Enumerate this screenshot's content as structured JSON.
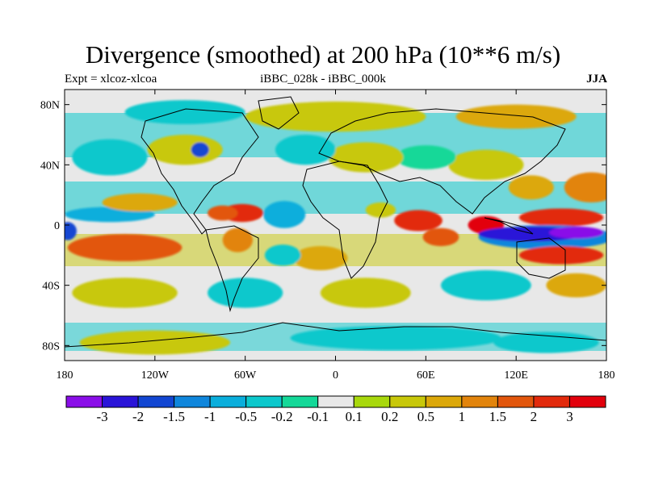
{
  "title": "Divergence (smoothed) at 200 hPa (10**6 m/s)",
  "subtitle_left": "Expt = xlcoz-xlcoa",
  "subtitle_center": "iBBC_028k - iBBC_000k",
  "subtitle_right": "JJA",
  "x_ticks": [
    {
      "value": -180,
      "label": "180"
    },
    {
      "value": -120,
      "label": "120W"
    },
    {
      "value": -60,
      "label": "60W"
    },
    {
      "value": 0,
      "label": "0"
    },
    {
      "value": 60,
      "label": "60E"
    },
    {
      "value": 120,
      "label": "120E"
    },
    {
      "value": 180,
      "label": "180"
    }
  ],
  "y_ticks": [
    {
      "value": 80,
      "label": "80N"
    },
    {
      "value": 40,
      "label": "40N"
    },
    {
      "value": 0,
      "label": "0"
    },
    {
      "value": -40,
      "label": "40S"
    },
    {
      "value": -80,
      "label": "80S"
    }
  ],
  "lon_range": [
    -180,
    180
  ],
  "lat_range": [
    -90,
    90
  ],
  "colorbar": {
    "labels": [
      "-3",
      "-2",
      "-1.5",
      "-1",
      "-0.5",
      "-0.2",
      "-0.1",
      "0.1",
      "0.2",
      "0.5",
      "1",
      "1.5",
      "2",
      "3"
    ],
    "colors": [
      "#8a0ee8",
      "#2a14d8",
      "#1246d2",
      "#0f86dc",
      "#0aaedc",
      "#0cc8cc",
      "#14d898",
      "#e8e8e8",
      "#a8d80c",
      "#c8c80a",
      "#dca80a",
      "#e2840c",
      "#e2560c",
      "#e22a0c",
      "#e2000c"
    ]
  },
  "field_blobs": [
    {
      "lon": -62,
      "lat": 8,
      "rx": 14,
      "ry": 6,
      "level": 13
    },
    {
      "lon": -75,
      "lat": 8,
      "rx": 10,
      "ry": 5,
      "level": 12
    },
    {
      "lon": -34,
      "lat": 7,
      "rx": 7,
      "ry": 6,
      "level": 1
    },
    {
      "lon": -34,
      "lat": 7,
      "rx": 14,
      "ry": 9,
      "level": 4
    },
    {
      "lon": -150,
      "lat": 7,
      "rx": 30,
      "ry": 5,
      "level": 4
    },
    {
      "lon": -140,
      "lat": -15,
      "rx": 38,
      "ry": 9,
      "level": 12
    },
    {
      "lon": -130,
      "lat": 15,
      "rx": 25,
      "ry": 6,
      "level": 10
    },
    {
      "lon": -178,
      "lat": -4,
      "rx": 6,
      "ry": 6,
      "level": 2
    },
    {
      "lon": -10,
      "lat": -22,
      "rx": 18,
      "ry": 8,
      "level": 10
    },
    {
      "lon": -35,
      "lat": -20,
      "rx": 12,
      "ry": 7,
      "level": 5
    },
    {
      "lon": -65,
      "lat": -10,
      "rx": 10,
      "ry": 8,
      "level": 11
    },
    {
      "lon": 55,
      "lat": 3,
      "rx": 16,
      "ry": 7,
      "level": 13
    },
    {
      "lon": 70,
      "lat": -8,
      "rx": 12,
      "ry": 6,
      "level": 12
    },
    {
      "lon": 30,
      "lat": 10,
      "rx": 10,
      "ry": 5,
      "level": 9
    },
    {
      "lon": 100,
      "lat": 0,
      "rx": 12,
      "ry": 6,
      "level": 14
    },
    {
      "lon": 150,
      "lat": 5,
      "rx": 28,
      "ry": 6,
      "level": 13
    },
    {
      "lon": 140,
      "lat": -8,
      "rx": 45,
      "ry": 8,
      "level": 3
    },
    {
      "lon": 130,
      "lat": -6,
      "rx": 35,
      "ry": 5,
      "level": 1
    },
    {
      "lon": 160,
      "lat": -5,
      "rx": 18,
      "ry": 4,
      "level": 0
    },
    {
      "lon": 150,
      "lat": -20,
      "rx": 28,
      "ry": 6,
      "level": 13
    },
    {
      "lon": 170,
      "lat": 25,
      "rx": 18,
      "ry": 10,
      "level": 11
    },
    {
      "lon": 130,
      "lat": 25,
      "rx": 15,
      "ry": 8,
      "level": 10
    },
    {
      "lon": 100,
      "lat": 40,
      "rx": 25,
      "ry": 10,
      "level": 9
    },
    {
      "lon": 60,
      "lat": 45,
      "rx": 20,
      "ry": 8,
      "level": 6
    },
    {
      "lon": 20,
      "lat": 45,
      "rx": 25,
      "ry": 10,
      "level": 9
    },
    {
      "lon": -20,
      "lat": 50,
      "rx": 20,
      "ry": 10,
      "level": 5
    },
    {
      "lon": -100,
      "lat": 50,
      "rx": 25,
      "ry": 10,
      "level": 9
    },
    {
      "lon": -90,
      "lat": 50,
      "rx": 6,
      "ry": 5,
      "level": 2
    },
    {
      "lon": -150,
      "lat": 45,
      "rx": 25,
      "ry": 12,
      "level": 5
    },
    {
      "lon": 0,
      "lat": 72,
      "rx": 60,
      "ry": 10,
      "level": 9
    },
    {
      "lon": -100,
      "lat": 75,
      "rx": 40,
      "ry": 8,
      "level": 5
    },
    {
      "lon": 120,
      "lat": 72,
      "rx": 40,
      "ry": 8,
      "level": 10
    },
    {
      "lon": -140,
      "lat": -45,
      "rx": 35,
      "ry": 10,
      "level": 9
    },
    {
      "lon": -60,
      "lat": -45,
      "rx": 25,
      "ry": 10,
      "level": 5
    },
    {
      "lon": 20,
      "lat": -45,
      "rx": 30,
      "ry": 10,
      "level": 9
    },
    {
      "lon": 100,
      "lat": -40,
      "rx": 30,
      "ry": 10,
      "level": 5
    },
    {
      "lon": 160,
      "lat": -40,
      "rx": 20,
      "ry": 8,
      "level": 10
    },
    {
      "lon": 40,
      "lat": -75,
      "rx": 70,
      "ry": 8,
      "level": 5
    },
    {
      "lon": -120,
      "lat": -78,
      "rx": 50,
      "ry": 8,
      "level": 9
    },
    {
      "lon": 140,
      "lat": -78,
      "rx": 35,
      "ry": 7,
      "level": 5
    }
  ]
}
